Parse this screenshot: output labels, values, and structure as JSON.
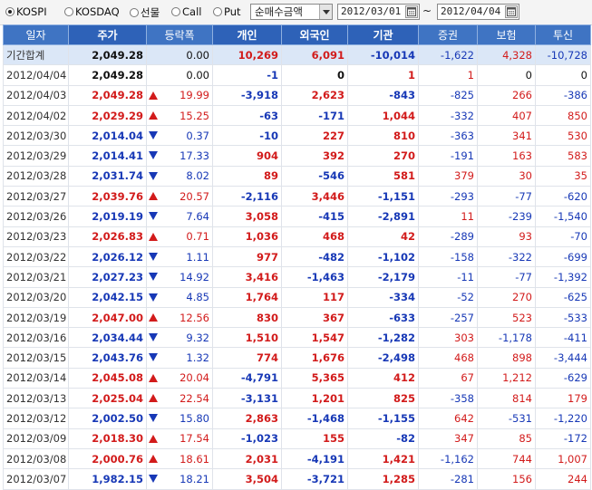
{
  "toolbar": {
    "markets": [
      {
        "label": "KOSPI",
        "selected": true
      },
      {
        "label": "KOSDAQ",
        "selected": false
      },
      {
        "label": "선물",
        "selected": false
      },
      {
        "label": "Call",
        "selected": false
      },
      {
        "label": "Put",
        "selected": false
      }
    ],
    "metric_select": "순매수금액",
    "date_from": "2012/03/01",
    "date_to": "2012/04/04",
    "range_sep": "~"
  },
  "table": {
    "columns": [
      "일자",
      "주가",
      "등락폭",
      "개인",
      "외국인",
      "기관",
      "증권",
      "보험",
      "투신"
    ],
    "summary": {
      "date": "기간합계",
      "price": "2,049.28",
      "change": "0.00",
      "indiv": "10,269",
      "foreign": "6,091",
      "inst": "-10,014",
      "sec": "-1,622",
      "ins": "4,328",
      "trust": "-10,728"
    },
    "rows": [
      {
        "date": "2012/04/04",
        "price": "2,049.28",
        "dir": "flat",
        "change": "0.00",
        "indiv": "-1",
        "foreign": "0",
        "inst": "1",
        "sec": "1",
        "ins": "0",
        "trust": "0"
      },
      {
        "date": "2012/04/03",
        "price": "2,049.28",
        "dir": "up",
        "change": "19.99",
        "indiv": "-3,918",
        "foreign": "2,623",
        "inst": "-843",
        "sec": "-825",
        "ins": "266",
        "trust": "-386"
      },
      {
        "date": "2012/04/02",
        "price": "2,029.29",
        "dir": "up",
        "change": "15.25",
        "indiv": "-63",
        "foreign": "-171",
        "inst": "1,044",
        "sec": "-332",
        "ins": "407",
        "trust": "850"
      },
      {
        "date": "2012/03/30",
        "price": "2,014.04",
        "dir": "dn",
        "change": "0.37",
        "indiv": "-10",
        "foreign": "227",
        "inst": "810",
        "sec": "-363",
        "ins": "341",
        "trust": "530"
      },
      {
        "date": "2012/03/29",
        "price": "2,014.41",
        "dir": "dn",
        "change": "17.33",
        "indiv": "904",
        "foreign": "392",
        "inst": "270",
        "sec": "-191",
        "ins": "163",
        "trust": "583"
      },
      {
        "date": "2012/03/28",
        "price": "2,031.74",
        "dir": "dn",
        "change": "8.02",
        "indiv": "89",
        "foreign": "-546",
        "inst": "581",
        "sec": "379",
        "ins": "30",
        "trust": "35"
      },
      {
        "date": "2012/03/27",
        "price": "2,039.76",
        "dir": "up",
        "change": "20.57",
        "indiv": "-2,116",
        "foreign": "3,446",
        "inst": "-1,151",
        "sec": "-293",
        "ins": "-77",
        "trust": "-620"
      },
      {
        "date": "2012/03/26",
        "price": "2,019.19",
        "dir": "dn",
        "change": "7.64",
        "indiv": "3,058",
        "foreign": "-415",
        "inst": "-2,891",
        "sec": "11",
        "ins": "-239",
        "trust": "-1,540"
      },
      {
        "date": "2012/03/23",
        "price": "2,026.83",
        "dir": "up",
        "change": "0.71",
        "indiv": "1,036",
        "foreign": "468",
        "inst": "42",
        "sec": "-289",
        "ins": "93",
        "trust": "-70"
      },
      {
        "date": "2012/03/22",
        "price": "2,026.12",
        "dir": "dn",
        "change": "1.11",
        "indiv": "977",
        "foreign": "-482",
        "inst": "-1,102",
        "sec": "-158",
        "ins": "-322",
        "trust": "-699"
      },
      {
        "date": "2012/03/21",
        "price": "2,027.23",
        "dir": "dn",
        "change": "14.92",
        "indiv": "3,416",
        "foreign": "-1,463",
        "inst": "-2,179",
        "sec": "-11",
        "ins": "-77",
        "trust": "-1,392"
      },
      {
        "date": "2012/03/20",
        "price": "2,042.15",
        "dir": "dn",
        "change": "4.85",
        "indiv": "1,764",
        "foreign": "117",
        "inst": "-334",
        "sec": "-52",
        "ins": "270",
        "trust": "-625"
      },
      {
        "date": "2012/03/19",
        "price": "2,047.00",
        "dir": "up",
        "change": "12.56",
        "indiv": "830",
        "foreign": "367",
        "inst": "-633",
        "sec": "-257",
        "ins": "523",
        "trust": "-533"
      },
      {
        "date": "2012/03/16",
        "price": "2,034.44",
        "dir": "dn",
        "change": "9.32",
        "indiv": "1,510",
        "foreign": "1,547",
        "inst": "-1,282",
        "sec": "303",
        "ins": "-1,178",
        "trust": "-411"
      },
      {
        "date": "2012/03/15",
        "price": "2,043.76",
        "dir": "dn",
        "change": "1.32",
        "indiv": "774",
        "foreign": "1,676",
        "inst": "-2,498",
        "sec": "468",
        "ins": "898",
        "trust": "-3,444"
      },
      {
        "date": "2012/03/14",
        "price": "2,045.08",
        "dir": "up",
        "change": "20.04",
        "indiv": "-4,791",
        "foreign": "5,365",
        "inst": "412",
        "sec": "67",
        "ins": "1,212",
        "trust": "-629"
      },
      {
        "date": "2012/03/13",
        "price": "2,025.04",
        "dir": "up",
        "change": "22.54",
        "indiv": "-3,131",
        "foreign": "1,201",
        "inst": "825",
        "sec": "-358",
        "ins": "814",
        "trust": "179"
      },
      {
        "date": "2012/03/12",
        "price": "2,002.50",
        "dir": "dn",
        "change": "15.80",
        "indiv": "2,863",
        "foreign": "-1,468",
        "inst": "-1,155",
        "sec": "642",
        "ins": "-531",
        "trust": "-1,220"
      },
      {
        "date": "2012/03/09",
        "price": "2,018.30",
        "dir": "up",
        "change": "17.54",
        "indiv": "-1,023",
        "foreign": "155",
        "inst": "-82",
        "sec": "347",
        "ins": "85",
        "trust": "-172"
      },
      {
        "date": "2012/03/08",
        "price": "2,000.76",
        "dir": "up",
        "change": "18.61",
        "indiv": "2,031",
        "foreign": "-4,191",
        "inst": "1,421",
        "sec": "-1,162",
        "ins": "744",
        "trust": "1,007"
      },
      {
        "date": "2012/03/07",
        "price": "1,982.15",
        "dir": "dn",
        "change": "18.21",
        "indiv": "3,504",
        "foreign": "-3,721",
        "inst": "1,285",
        "sec": "-281",
        "ins": "156",
        "trust": "244"
      }
    ]
  },
  "colors": {
    "up": "#d21b1b",
    "down": "#1738b6",
    "header": "#3f74c3",
    "summary_bg": "#dbe7f7"
  }
}
